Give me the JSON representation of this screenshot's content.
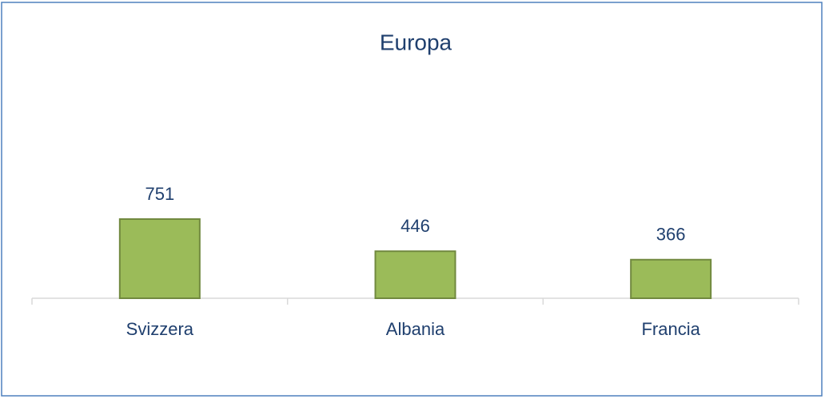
{
  "chart_data": {
    "type": "bar",
    "title": "Europa",
    "categories": [
      "Svizzera",
      "Albania",
      "Francia"
    ],
    "values": [
      751,
      446,
      366
    ],
    "color": "#9bbb59"
  }
}
